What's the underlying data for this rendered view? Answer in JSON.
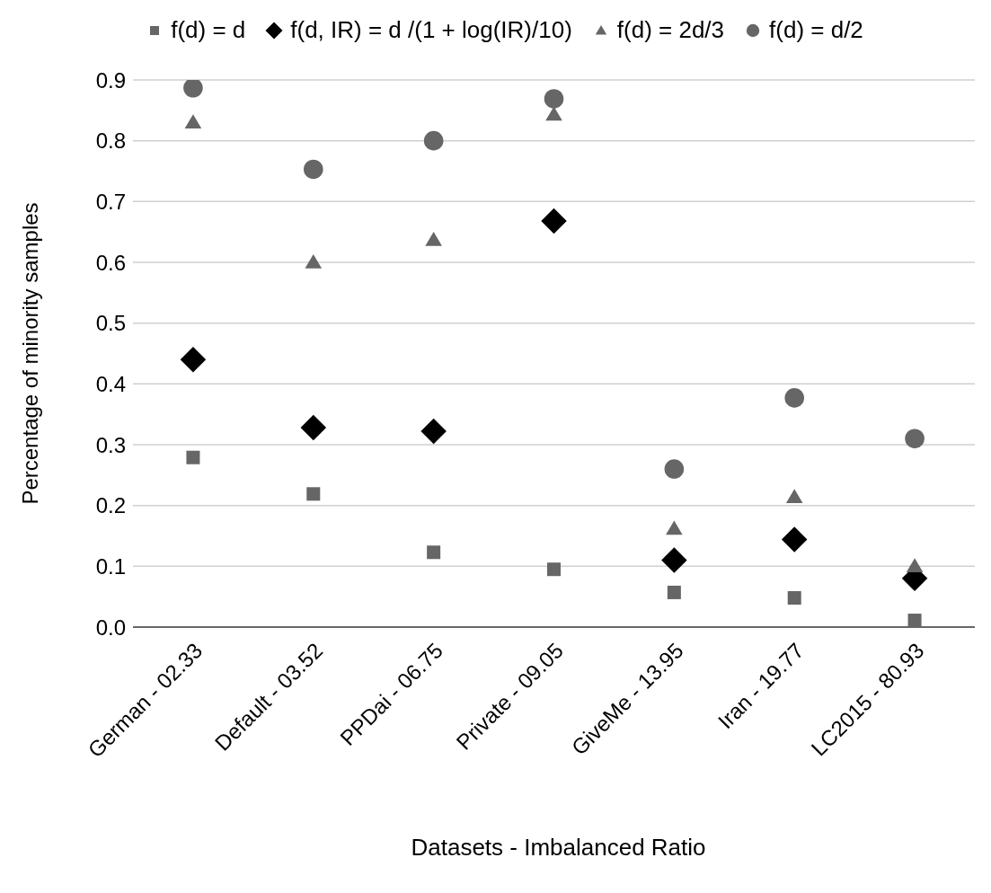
{
  "chart_data": {
    "type": "scatter",
    "xlabel": "Datasets - Imbalanced Ratio",
    "ylabel": "Percentage of minority samples",
    "categories": [
      "German - 02.33",
      "Default - 03.52",
      "PPDai - 06.75",
      "Private - 09.05",
      "GiveMe - 13.95",
      "Iran - 19.77",
      "LC2015 - 80.93"
    ],
    "series": [
      {
        "name": "f(d) = d",
        "color": "#666666",
        "marker": "square",
        "values": [
          0.279,
          0.219,
          0.123,
          0.095,
          0.057,
          0.048,
          0.011
        ]
      },
      {
        "name": "f(d, IR) = d /(1 + log(IR)/10)",
        "color": "#000000",
        "marker": "diamond",
        "values": [
          0.44,
          0.328,
          0.322,
          0.668,
          0.11,
          0.144,
          0.08
        ]
      },
      {
        "name": "f(d) = 2d/3",
        "color": "#666666",
        "marker": "triangle",
        "values": [
          0.83,
          0.6,
          0.637,
          0.843,
          0.162,
          0.214,
          0.1
        ]
      },
      {
        "name": "f(d) = d/2",
        "color": "#666666",
        "marker": "circle",
        "values": [
          0.887,
          0.753,
          0.8,
          0.869,
          0.26,
          0.377,
          0.31
        ]
      }
    ],
    "ylim": [
      0,
      0.9
    ],
    "yticks": [
      {
        "value": 0,
        "label": "0.0"
      },
      0.1,
      0.2,
      0.3,
      0.4,
      0.5,
      0.6,
      0.7,
      0.8,
      0.9
    ],
    "grid": "y",
    "legend": "top"
  }
}
